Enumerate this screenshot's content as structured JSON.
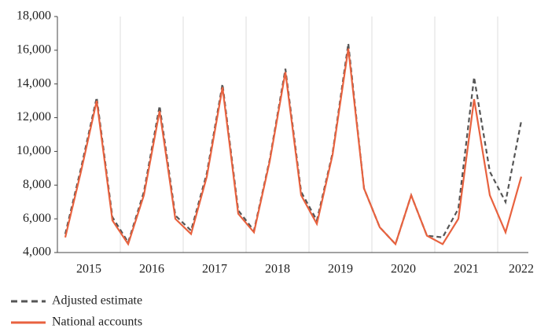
{
  "chart_data": {
    "type": "line",
    "categories": [
      null,
      "2015",
      null,
      null,
      null,
      "2016",
      null,
      null,
      null,
      "2017",
      null,
      null,
      null,
      "2018",
      null,
      null,
      null,
      "2019",
      null,
      null,
      null,
      "2020",
      null,
      null,
      null,
      "2021",
      null,
      null,
      null,
      "2022"
    ],
    "series": [
      {
        "name": "Adjusted estimate",
        "color": "#555555",
        "dash": true,
        "values": [
          5100,
          9000,
          13200,
          6100,
          4600,
          7600,
          12700,
          6200,
          5300,
          8700,
          14000,
          6500,
          5300,
          9500,
          14900,
          7600,
          5900,
          9900,
          16400,
          7800,
          5500,
          4500,
          7400,
          5000,
          4900,
          6600,
          14400,
          8800,
          7000,
          11800
        ]
      },
      {
        "name": "National accounts",
        "color": "#e8623f",
        "dash": false,
        "values": [
          4900,
          8800,
          13000,
          5900,
          4500,
          7400,
          12400,
          6000,
          5100,
          8500,
          13800,
          6300,
          5200,
          9400,
          14700,
          7400,
          5700,
          9800,
          16100,
          7800,
          5500,
          4500,
          7400,
          5000,
          4500,
          6000,
          13100,
          7400,
          5200,
          8500
        ]
      }
    ],
    "ylim": [
      4000,
      18000
    ],
    "yticks": [
      {
        "value": 4000,
        "label": "4,000"
      },
      {
        "value": 6000,
        "label": "6,000"
      },
      {
        "value": 8000,
        "label": "8,000"
      },
      {
        "value": 10000,
        "label": "10,000"
      },
      {
        "value": 12000,
        "label": "12,000"
      },
      {
        "value": 14000,
        "label": "14,000"
      },
      {
        "value": 16000,
        "label": "16,000"
      },
      {
        "value": 18000,
        "label": "18,000"
      }
    ],
    "grid": true
  }
}
